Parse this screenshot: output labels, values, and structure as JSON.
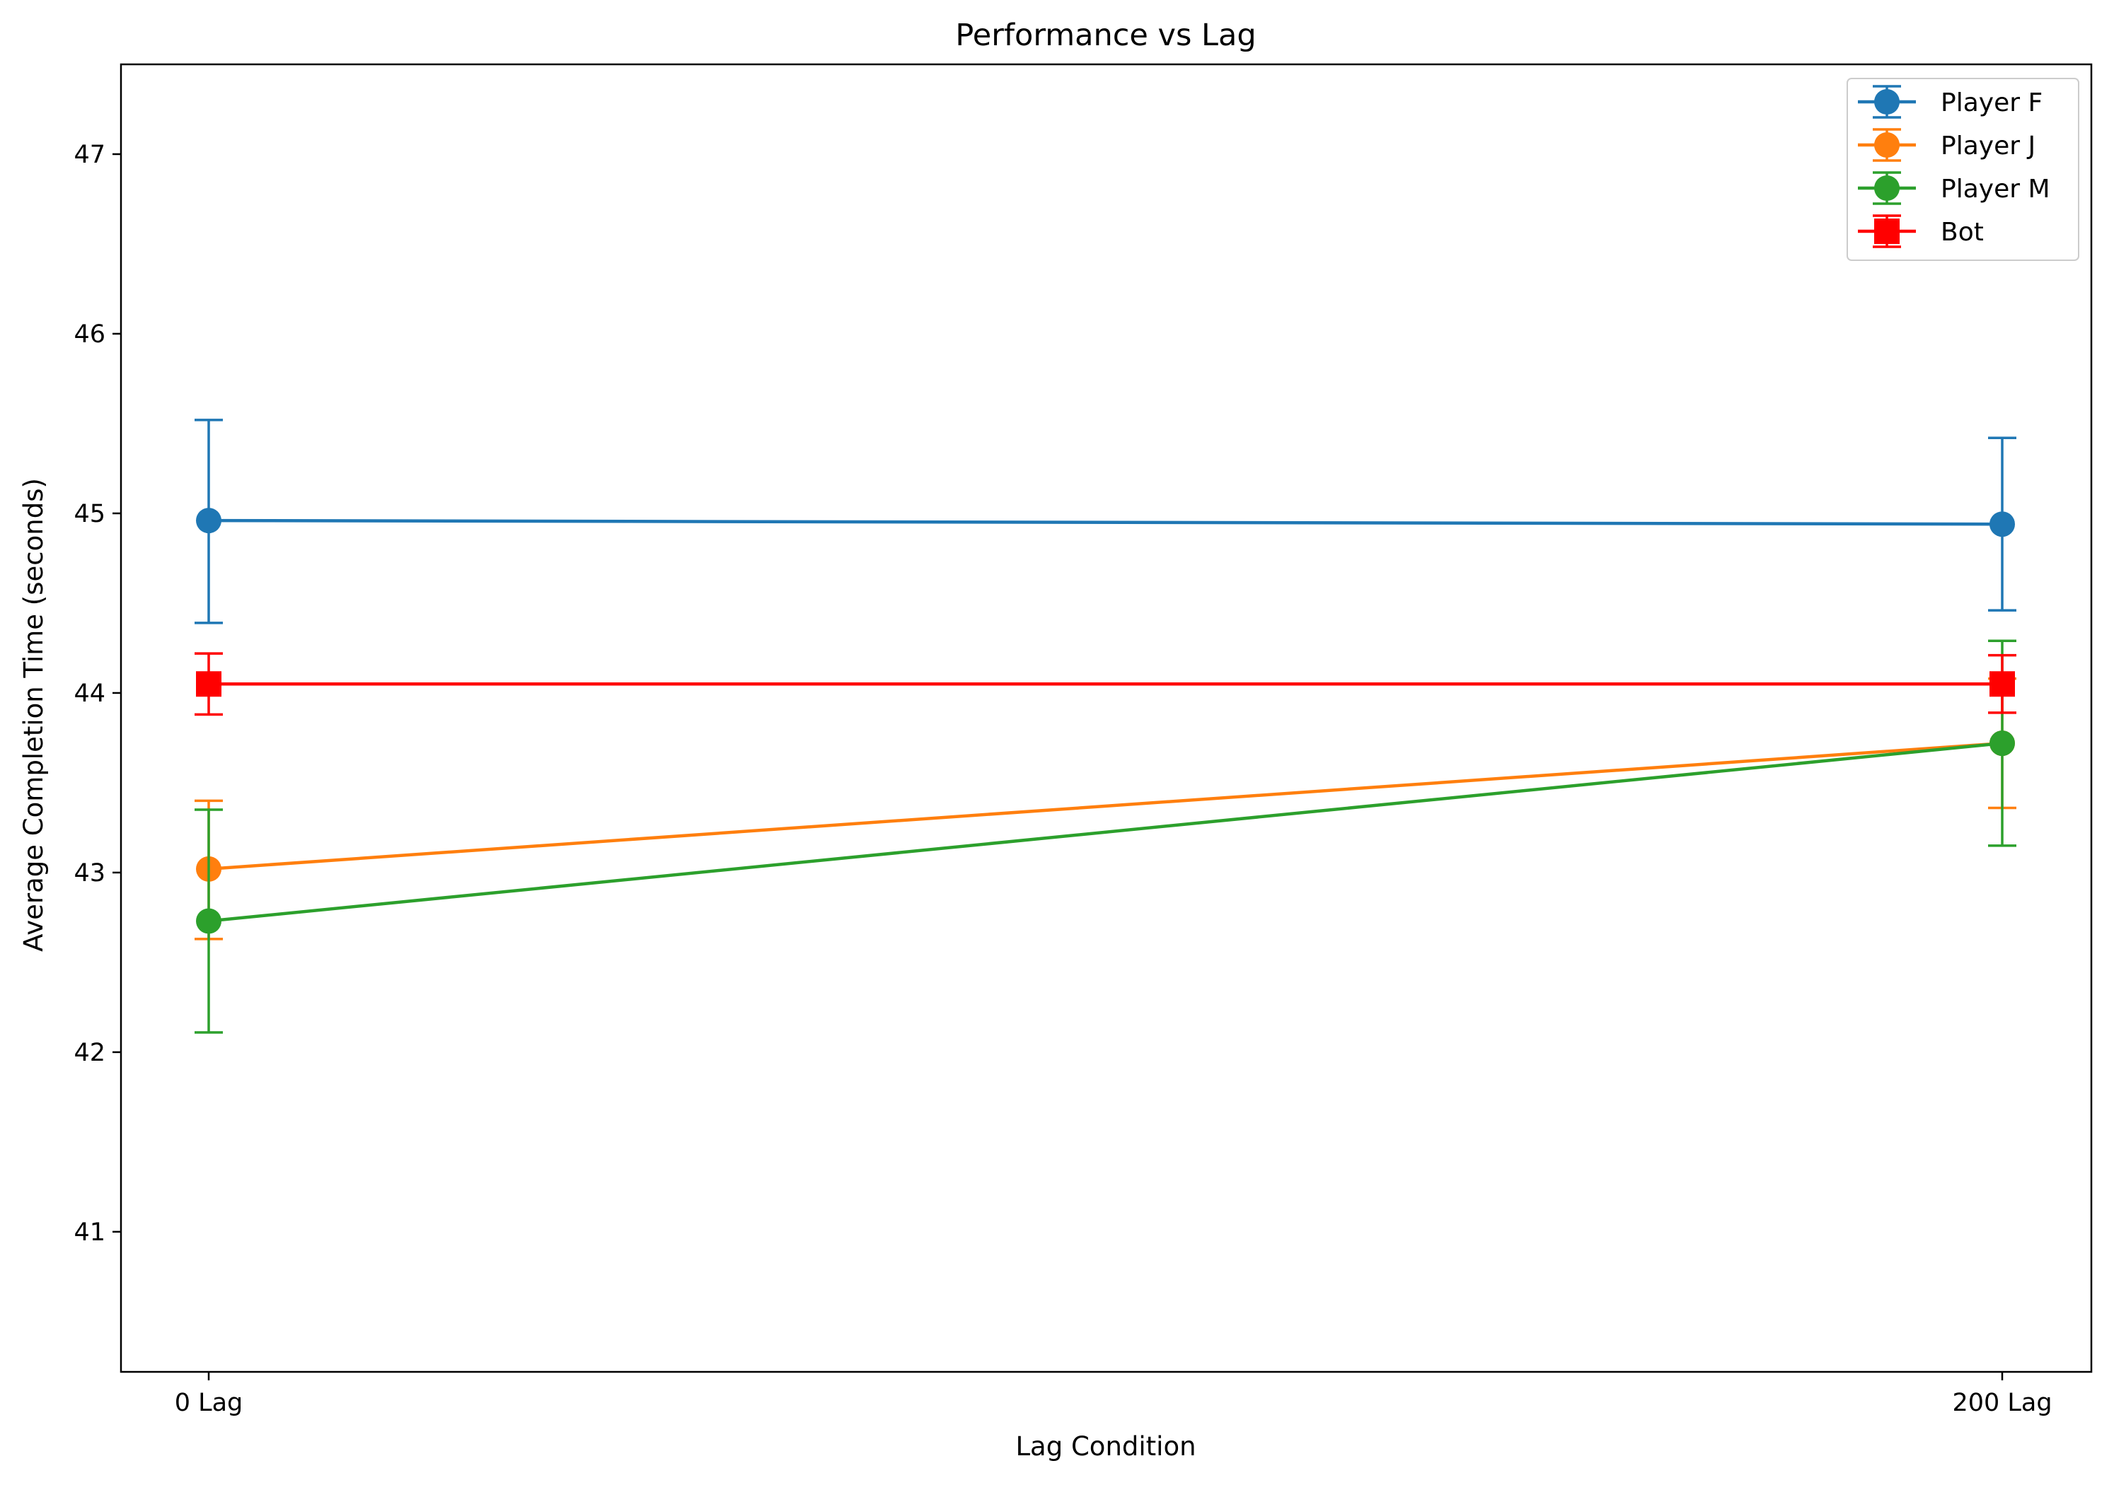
{
  "chart_data": {
    "type": "line",
    "title": "Performance vs Lag",
    "xlabel": "Lag Condition",
    "ylabel": "Average Completion Time (seconds)",
    "categories": [
      "0 Lag",
      "200 Lag"
    ],
    "ylim": [
      40.22,
      47.5
    ],
    "yticks": [
      "41",
      "42",
      "43",
      "44",
      "45",
      "46",
      "47"
    ],
    "grid": false,
    "legend_position": "top-right",
    "series": [
      {
        "name": "Player F",
        "color": "#1f77b4",
        "marker": "circle",
        "values": [
          44.96,
          44.94
        ],
        "err_low": [
          44.39,
          44.46
        ],
        "err_high": [
          45.52,
          45.42
        ]
      },
      {
        "name": "Player J",
        "color": "#ff7f0e",
        "marker": "circle",
        "values": [
          43.02,
          43.72
        ],
        "err_low": [
          42.63,
          43.36
        ],
        "err_high": [
          43.4,
          44.08
        ]
      },
      {
        "name": "Player M",
        "color": "#2ca02c",
        "marker": "circle",
        "values": [
          42.73,
          43.72
        ],
        "err_low": [
          42.11,
          43.15
        ],
        "err_high": [
          43.35,
          44.29
        ]
      },
      {
        "name": "Bot",
        "color": "#ff0000",
        "marker": "square",
        "values": [
          44.05,
          44.05
        ],
        "err_low": [
          43.88,
          43.89
        ],
        "err_high": [
          44.22,
          44.21
        ]
      }
    ]
  }
}
